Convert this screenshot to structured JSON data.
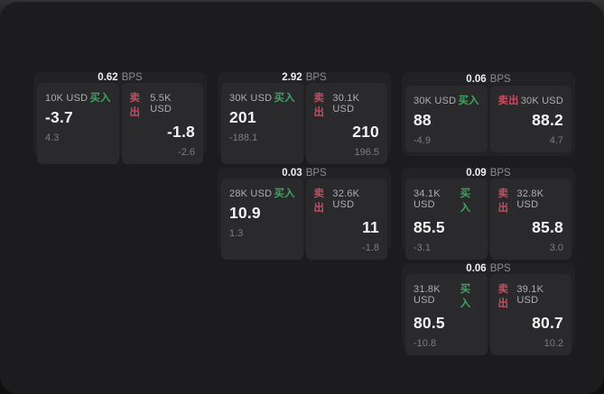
{
  "labels": {
    "buy": "买入",
    "sell": "卖出",
    "bps_unit": "BPS"
  },
  "colors": {
    "buy_green": "#3ea35f",
    "sell_red": "#c94b60",
    "panel_bg": "#1c1c1e",
    "card_bg": "#222224",
    "tile_bg": "#2a2a2c"
  },
  "cards": [
    {
      "bps": "0.62",
      "buy": {
        "amount": "10K USD",
        "value": "-3.7",
        "delta": "4.3"
      },
      "sell": {
        "amount": "5.5K USD",
        "value": "-1.8",
        "delta": "-2.6"
      }
    },
    {
      "bps": "2.92",
      "buy": {
        "amount": "30K USD",
        "value": "201",
        "delta": "-188.1"
      },
      "sell": {
        "amount": "30.1K USD",
        "value": "210",
        "delta": "196.5"
      }
    },
    {
      "bps": "0.06",
      "buy": {
        "amount": "30K USD",
        "value": "88",
        "delta": "-4.9"
      },
      "sell": {
        "amount": "30K USD",
        "value": "88.2",
        "delta": "4.7"
      }
    },
    {
      "bps": "0.03",
      "buy": {
        "amount": "28K USD",
        "value": "10.9",
        "delta": "1.3"
      },
      "sell": {
        "amount": "32.6K USD",
        "value": "11",
        "delta": "-1.8"
      }
    },
    {
      "bps": "0.09",
      "buy": {
        "amount": "34.1K USD",
        "value": "85.5",
        "delta": "-3.1"
      },
      "sell": {
        "amount": "32.8K USD",
        "value": "85.8",
        "delta": "3.0"
      }
    },
    {
      "bps": "0.06",
      "buy": {
        "amount": "31.8K USD",
        "value": "80.5",
        "delta": "-10.8"
      },
      "sell": {
        "amount": "39.1K USD",
        "value": "80.7",
        "delta": "10.2"
      }
    }
  ]
}
